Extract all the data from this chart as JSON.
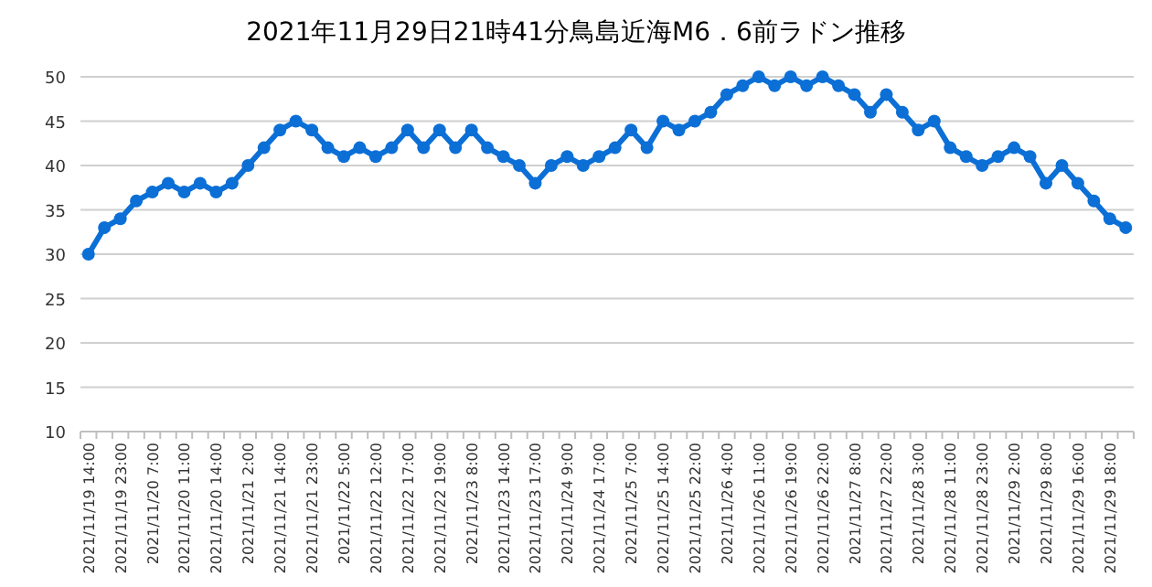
{
  "chart_data": {
    "type": "line",
    "title": "2021年11月29日21時41分鳥島近海M6．6前ラドン推移",
    "categories": [
      "2021/11/19 14:00",
      null,
      "2021/11/19 23:00",
      null,
      "2021/11/20 7:00",
      null,
      "2021/11/20 11:00",
      null,
      "2021/11/20 14:00",
      null,
      "2021/11/21 2:00",
      null,
      "2021/11/21 14:00",
      null,
      "2021/11/21 23:00",
      null,
      "2021/11/22 5:00",
      null,
      "2021/11/22 12:00",
      null,
      "2021/11/22 17:00",
      null,
      "2021/11/22 19:00",
      null,
      "2021/11/23 8:00",
      null,
      "2021/11/23 14:00",
      null,
      "2021/11/23 17:00",
      null,
      "2021/11/24 9:00",
      null,
      "2021/11/24 17:00",
      null,
      "2021/11/25 7:00",
      null,
      "2021/11/25 14:00",
      null,
      "2021/11/25 22:00",
      null,
      "2021/11/26 4:00",
      null,
      "2021/11/26 11:00",
      null,
      "2021/11/26 19:00",
      null,
      "2021/11/26 22:00",
      null,
      "2021/11/27 8:00",
      null,
      "2021/11/27 22:00",
      null,
      "2021/11/28 3:00",
      null,
      "2021/11/28 11:00",
      null,
      "2021/11/28 23:00",
      null,
      "2021/11/29 2:00",
      null,
      "2021/11/29 8:00",
      null,
      "2021/11/29 16:00",
      null,
      "2021/11/29 18:00",
      null
    ],
    "series": [
      {
        "color": "#0b6fd6",
        "values": [
          30,
          33,
          34,
          36,
          37,
          38,
          37,
          38,
          37,
          38,
          40,
          42,
          44,
          45,
          44,
          42,
          41,
          42,
          41,
          42,
          44,
          42,
          44,
          42,
          44,
          42,
          41,
          40,
          38,
          40,
          41,
          40,
          41,
          42,
          44,
          42,
          45,
          44,
          45,
          46,
          48,
          49,
          50,
          49,
          50,
          49,
          50,
          49,
          48,
          46,
          48,
          46,
          44,
          45,
          42,
          41,
          40,
          41,
          42,
          41,
          38,
          40,
          38,
          36,
          34,
          33
        ]
      }
    ],
    "ylim": [
      10,
      50
    ],
    "yticks": [
      10,
      15,
      20,
      25,
      30,
      35,
      40,
      45,
      50
    ],
    "grid": "y",
    "marker": "circle",
    "line_style": "solid"
  }
}
